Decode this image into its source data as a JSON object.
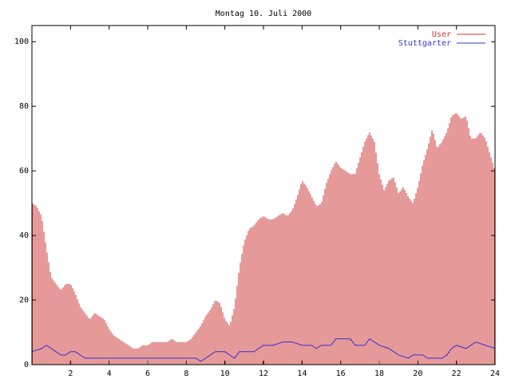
{
  "chart_data": {
    "type": "bar",
    "title": "Montag 10. Juli 2000",
    "xlabel": "",
    "ylabel": "",
    "xlim": [
      0,
      24
    ],
    "ylim": [
      0,
      105
    ],
    "x_ticks": [
      2,
      4,
      6,
      8,
      10,
      12,
      14,
      16,
      18,
      20,
      22,
      24
    ],
    "y_ticks": [
      0,
      20,
      40,
      60,
      80,
      100
    ],
    "grid": false,
    "legend_position": "top-right",
    "series": [
      {
        "name": "User",
        "mark": "impulses",
        "color": "#cc3333",
        "points": [
          [
            0.0,
            50
          ],
          [
            0.25,
            49
          ],
          [
            0.5,
            46
          ],
          [
            0.75,
            36
          ],
          [
            1.0,
            27
          ],
          [
            1.25,
            25
          ],
          [
            1.5,
            23
          ],
          [
            1.75,
            25
          ],
          [
            2.0,
            25
          ],
          [
            2.25,
            22
          ],
          [
            2.5,
            18
          ],
          [
            2.75,
            16
          ],
          [
            3.0,
            14
          ],
          [
            3.25,
            16
          ],
          [
            3.5,
            15
          ],
          [
            3.75,
            14
          ],
          [
            4.0,
            11
          ],
          [
            4.25,
            9
          ],
          [
            4.5,
            8
          ],
          [
            4.75,
            7
          ],
          [
            5.0,
            6
          ],
          [
            5.25,
            5
          ],
          [
            5.5,
            5
          ],
          [
            5.75,
            6
          ],
          [
            6.0,
            6
          ],
          [
            6.25,
            7
          ],
          [
            6.5,
            7
          ],
          [
            6.75,
            7
          ],
          [
            7.0,
            7
          ],
          [
            7.25,
            8
          ],
          [
            7.5,
            7
          ],
          [
            7.75,
            7
          ],
          [
            8.0,
            7
          ],
          [
            8.25,
            8
          ],
          [
            8.5,
            10
          ],
          [
            8.75,
            12
          ],
          [
            9.0,
            15
          ],
          [
            9.25,
            17
          ],
          [
            9.5,
            20
          ],
          [
            9.75,
            19
          ],
          [
            10.0,
            14
          ],
          [
            10.25,
            12
          ],
          [
            10.5,
            18
          ],
          [
            10.75,
            30
          ],
          [
            11.0,
            38
          ],
          [
            11.25,
            42
          ],
          [
            11.5,
            43
          ],
          [
            11.75,
            45
          ],
          [
            12.0,
            46
          ],
          [
            12.25,
            45
          ],
          [
            12.5,
            45
          ],
          [
            12.75,
            46
          ],
          [
            13.0,
            47
          ],
          [
            13.25,
            46
          ],
          [
            13.5,
            48
          ],
          [
            13.75,
            52
          ],
          [
            14.0,
            57
          ],
          [
            14.25,
            55
          ],
          [
            14.5,
            52
          ],
          [
            14.75,
            49
          ],
          [
            15.0,
            50
          ],
          [
            15.25,
            56
          ],
          [
            15.5,
            60
          ],
          [
            15.75,
            63
          ],
          [
            16.0,
            61
          ],
          [
            16.25,
            60
          ],
          [
            16.5,
            59
          ],
          [
            16.75,
            59
          ],
          [
            17.0,
            64
          ],
          [
            17.25,
            69
          ],
          [
            17.5,
            72
          ],
          [
            17.75,
            69
          ],
          [
            18.0,
            59
          ],
          [
            18.25,
            54
          ],
          [
            18.5,
            57
          ],
          [
            18.75,
            58
          ],
          [
            19.0,
            53
          ],
          [
            19.25,
            55
          ],
          [
            19.5,
            52
          ],
          [
            19.75,
            50
          ],
          [
            20.0,
            55
          ],
          [
            20.25,
            62
          ],
          [
            20.5,
            67
          ],
          [
            20.75,
            73
          ],
          [
            21.0,
            67
          ],
          [
            21.25,
            69
          ],
          [
            21.5,
            72
          ],
          [
            21.75,
            77
          ],
          [
            22.0,
            78
          ],
          [
            22.25,
            76
          ],
          [
            22.5,
            77
          ],
          [
            22.75,
            70
          ],
          [
            23.0,
            70
          ],
          [
            23.25,
            72
          ],
          [
            23.5,
            70
          ],
          [
            23.75,
            65
          ],
          [
            24.0,
            60
          ]
        ]
      },
      {
        "name": "Stuttgarter",
        "mark": "line",
        "color": "#3333cc",
        "points": [
          [
            0.0,
            4
          ],
          [
            0.5,
            5
          ],
          [
            0.75,
            6
          ],
          [
            1.0,
            5
          ],
          [
            1.25,
            4
          ],
          [
            1.5,
            3
          ],
          [
            1.75,
            3
          ],
          [
            2.0,
            4
          ],
          [
            2.25,
            4
          ],
          [
            2.5,
            3
          ],
          [
            2.75,
            2
          ],
          [
            4.0,
            2
          ],
          [
            6.0,
            2
          ],
          [
            8.0,
            2
          ],
          [
            8.5,
            2
          ],
          [
            8.75,
            1
          ],
          [
            9.0,
            2
          ],
          [
            9.25,
            3
          ],
          [
            9.5,
            4
          ],
          [
            10.0,
            4
          ],
          [
            10.25,
            3
          ],
          [
            10.5,
            2
          ],
          [
            10.75,
            4
          ],
          [
            11.5,
            4
          ],
          [
            11.75,
            5
          ],
          [
            12.0,
            6
          ],
          [
            12.5,
            6
          ],
          [
            13.0,
            7
          ],
          [
            13.5,
            7
          ],
          [
            14.0,
            6
          ],
          [
            14.5,
            6
          ],
          [
            14.75,
            5
          ],
          [
            15.0,
            6
          ],
          [
            15.5,
            6
          ],
          [
            15.75,
            8
          ],
          [
            16.5,
            8
          ],
          [
            16.75,
            6
          ],
          [
            17.25,
            6
          ],
          [
            17.5,
            8
          ],
          [
            17.75,
            7
          ],
          [
            18.0,
            6
          ],
          [
            18.5,
            5
          ],
          [
            18.75,
            4
          ],
          [
            19.0,
            3
          ],
          [
            19.5,
            2
          ],
          [
            19.75,
            3
          ],
          [
            20.25,
            3
          ],
          [
            20.5,
            2
          ],
          [
            21.0,
            2
          ],
          [
            21.25,
            2
          ],
          [
            21.5,
            3
          ],
          [
            21.75,
            5
          ],
          [
            22.0,
            6
          ],
          [
            22.5,
            5
          ],
          [
            23.0,
            7
          ],
          [
            23.5,
            6
          ],
          [
            24.0,
            5
          ]
        ]
      }
    ]
  }
}
